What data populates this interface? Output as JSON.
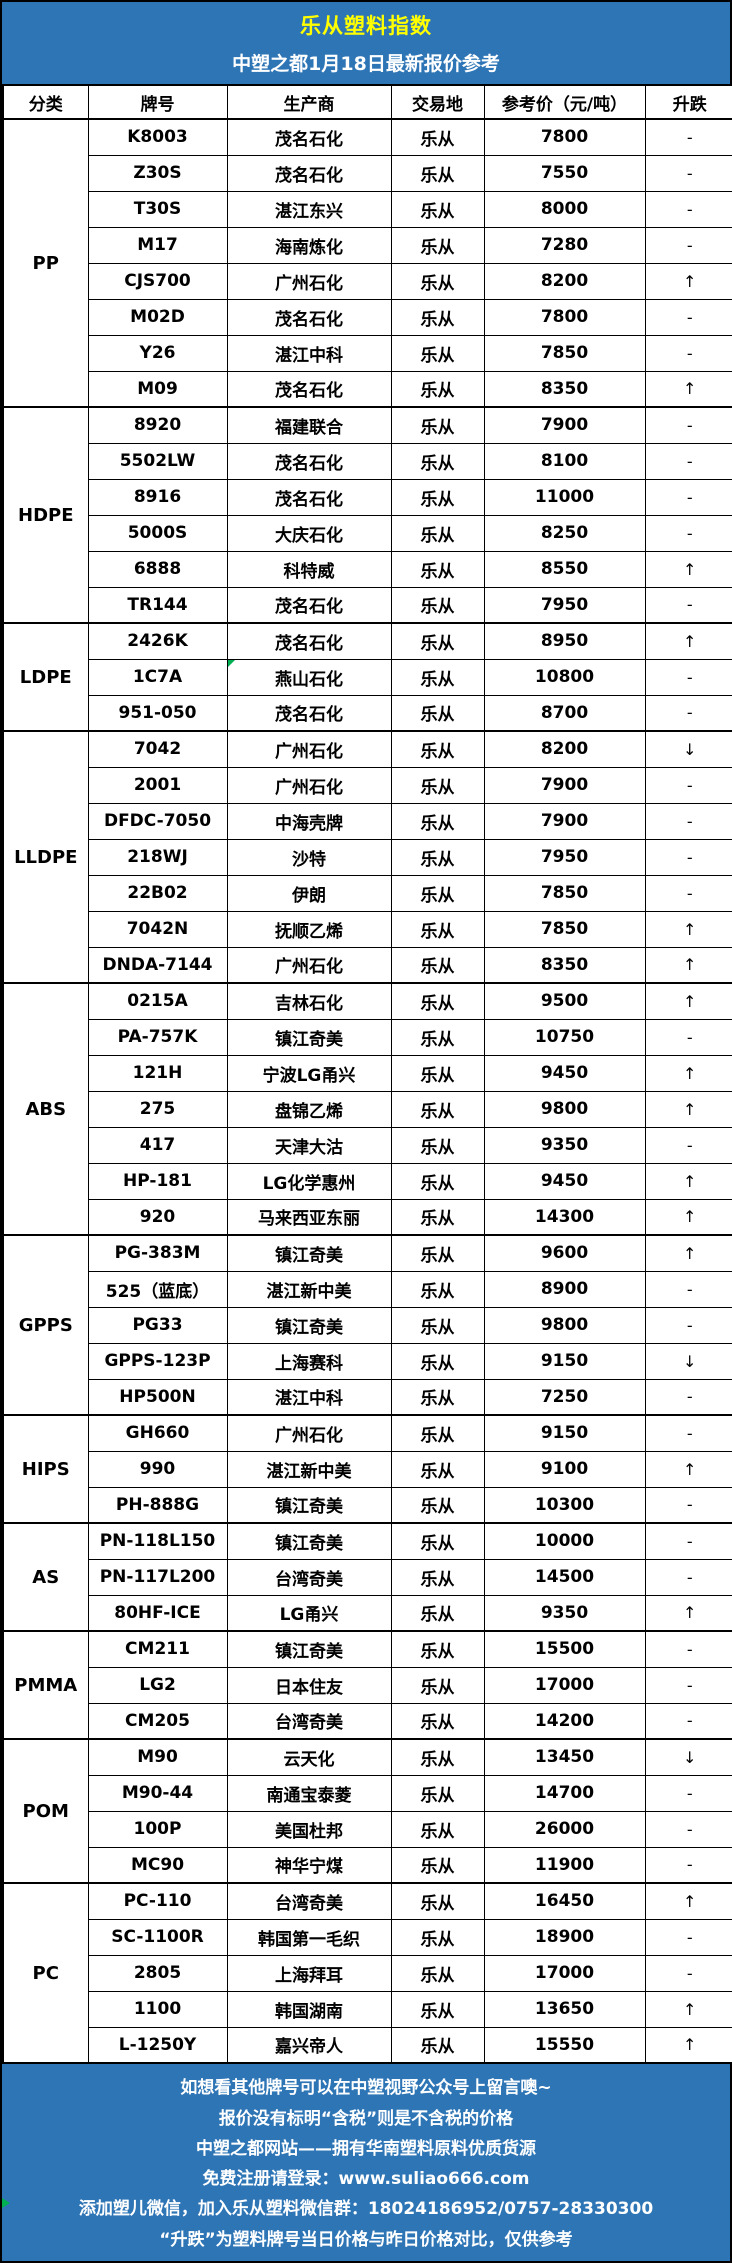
{
  "banner": {
    "title": "乐从塑料指数",
    "subtitle": "中塑之都1月18日最新报价参考"
  },
  "table": {
    "columns": [
      "分类",
      "牌号",
      "生产商",
      "交易地",
      "参考价（元/吨）",
      "升跌"
    ],
    "sections": [
      {
        "category": "PP",
        "rows": [
          {
            "grade": "K8003",
            "producer": "茂名石化",
            "market": "乐从",
            "price": "7800",
            "change": "-"
          },
          {
            "grade": "Z30S",
            "producer": "茂名石化",
            "market": "乐从",
            "price": "7550",
            "change": "-"
          },
          {
            "grade": "T30S",
            "producer": "湛江东兴",
            "market": "乐从",
            "price": "8000",
            "change": "-"
          },
          {
            "grade": "M17",
            "producer": "海南炼化",
            "market": "乐从",
            "price": "7280",
            "change": "-"
          },
          {
            "grade": "CJS700",
            "producer": "广州石化",
            "market": "乐从",
            "price": "8200",
            "change": "↑"
          },
          {
            "grade": "M02D",
            "producer": "茂名石化",
            "market": "乐从",
            "price": "7800",
            "change": "-"
          },
          {
            "grade": "Y26",
            "producer": "湛江中科",
            "market": "乐从",
            "price": "7850",
            "change": "-"
          },
          {
            "grade": "M09",
            "producer": "茂名石化",
            "market": "乐从",
            "price": "8350",
            "change": "↑"
          }
        ]
      },
      {
        "category": "HDPE",
        "rows": [
          {
            "grade": "8920",
            "producer": "福建联合",
            "market": "乐从",
            "price": "7900",
            "change": "-"
          },
          {
            "grade": "5502LW",
            "producer": "茂名石化",
            "market": "乐从",
            "price": "8100",
            "change": "-"
          },
          {
            "grade": "8916",
            "producer": "茂名石化",
            "market": "乐从",
            "price": "11000",
            "change": "-"
          },
          {
            "grade": "5000S",
            "producer": "大庆石化",
            "market": "乐从",
            "price": "8250",
            "change": "-"
          },
          {
            "grade": "6888",
            "producer": "科特威",
            "market": "乐从",
            "price": "8550",
            "change": "↑"
          },
          {
            "grade": "TR144",
            "producer": "茂名石化",
            "market": "乐从",
            "price": "7950",
            "change": "-"
          }
        ]
      },
      {
        "category": "LDPE",
        "rows": [
          {
            "grade": "2426K",
            "producer": "茂名石化",
            "market": "乐从",
            "price": "8950",
            "change": "↑"
          },
          {
            "grade": "1C7A",
            "producer": "燕山石化",
            "market": "乐从",
            "price": "10800",
            "change": "-",
            "note": true
          },
          {
            "grade": "951-050",
            "producer": "茂名石化",
            "market": "乐从",
            "price": "8700",
            "change": "-"
          }
        ]
      },
      {
        "category": "LLDPE",
        "rows": [
          {
            "grade": "7042",
            "producer": "广州石化",
            "market": "乐从",
            "price": "8200",
            "change": "↓"
          },
          {
            "grade": "2001",
            "producer": "广州石化",
            "market": "乐从",
            "price": "7900",
            "change": "-"
          },
          {
            "grade": "DFDC-7050",
            "producer": "中海壳牌",
            "market": "乐从",
            "price": "7900",
            "change": "-"
          },
          {
            "grade": "218WJ",
            "producer": "沙特",
            "market": "乐从",
            "price": "7950",
            "change": "-"
          },
          {
            "grade": "22B02",
            "producer": "伊朗",
            "market": "乐从",
            "price": "7850",
            "change": "-"
          },
          {
            "grade": "7042N",
            "producer": "抚顺乙烯",
            "market": "乐从",
            "price": "7850",
            "change": "↑"
          },
          {
            "grade": "DNDA-7144",
            "producer": "广州石化",
            "market": "乐从",
            "price": "8350",
            "change": "↑"
          }
        ]
      },
      {
        "category": "ABS",
        "rows": [
          {
            "grade": "0215A",
            "producer": "吉林石化",
            "market": "乐从",
            "price": "9500",
            "change": "↑"
          },
          {
            "grade": "PA-757K",
            "producer": "镇江奇美",
            "market": "乐从",
            "price": "10750",
            "change": "-"
          },
          {
            "grade": "121H",
            "producer": "宁波LG甬兴",
            "market": "乐从",
            "price": "9450",
            "change": "↑"
          },
          {
            "grade": "275",
            "producer": "盘锦乙烯",
            "market": "乐从",
            "price": "9800",
            "change": "↑"
          },
          {
            "grade": "417",
            "producer": "天津大沽",
            "market": "乐从",
            "price": "9350",
            "change": "-"
          },
          {
            "grade": "HP-181",
            "producer": "LG化学惠州",
            "market": "乐从",
            "price": "9450",
            "change": "↑"
          },
          {
            "grade": "920",
            "producer": "马来西亚东丽",
            "market": "乐从",
            "price": "14300",
            "change": "↑"
          }
        ]
      },
      {
        "category": "GPPS",
        "rows": [
          {
            "grade": "PG-383M",
            "producer": "镇江奇美",
            "market": "乐从",
            "price": "9600",
            "change": "↑"
          },
          {
            "grade": "525（蓝底）",
            "producer": "湛江新中美",
            "market": "乐从",
            "price": "8900",
            "change": "-"
          },
          {
            "grade": "PG33",
            "producer": "镇江奇美",
            "market": "乐从",
            "price": "9800",
            "change": "-"
          },
          {
            "grade": "GPPS-123P",
            "producer": "上海赛科",
            "market": "乐从",
            "price": "9150",
            "change": "↓"
          },
          {
            "grade": "HP500N",
            "producer": "湛江中科",
            "market": "乐从",
            "price": "7250",
            "change": "-"
          }
        ]
      },
      {
        "category": "HIPS",
        "rows": [
          {
            "grade": "GH660",
            "producer": "广州石化",
            "market": "乐从",
            "price": "9150",
            "change": "-"
          },
          {
            "grade": "990",
            "producer": "湛江新中美",
            "market": "乐从",
            "price": "9100",
            "change": "↑"
          },
          {
            "grade": "PH-888G",
            "producer": "镇江奇美",
            "market": "乐从",
            "price": "10300",
            "change": "-"
          }
        ]
      },
      {
        "category": "AS",
        "rows": [
          {
            "grade": "PN-118L150",
            "producer": "镇江奇美",
            "market": "乐从",
            "price": "10000",
            "change": "-"
          },
          {
            "grade": "PN-117L200",
            "producer": "台湾奇美",
            "market": "乐从",
            "price": "14500",
            "change": "-"
          },
          {
            "grade": "80HF-ICE",
            "producer": "LG甬兴",
            "market": "乐从",
            "price": "9350",
            "change": "↑"
          }
        ]
      },
      {
        "category": "PMMA",
        "rows": [
          {
            "grade": "CM211",
            "producer": "镇江奇美",
            "market": "乐从",
            "price": "15500",
            "change": "-"
          },
          {
            "grade": "LG2",
            "producer": "日本住友",
            "market": "乐从",
            "price": "17000",
            "change": "-"
          },
          {
            "grade": "CM205",
            "producer": "台湾奇美",
            "market": "乐从",
            "price": "14200",
            "change": "-"
          }
        ]
      },
      {
        "category": "POM",
        "rows": [
          {
            "grade": "M90",
            "producer": "云天化",
            "market": "乐从",
            "price": "13450",
            "change": "↓"
          },
          {
            "grade": "M90-44",
            "producer": "南通宝泰菱",
            "market": "乐从",
            "price": "14700",
            "change": "-"
          },
          {
            "grade": "100P",
            "producer": "美国杜邦",
            "market": "乐从",
            "price": "26000",
            "change": "-"
          },
          {
            "grade": "MC90",
            "producer": "神华宁煤",
            "market": "乐从",
            "price": "11900",
            "change": "-"
          }
        ]
      },
      {
        "category": "PC",
        "rows": [
          {
            "grade": "PC-110",
            "producer": "台湾奇美",
            "market": "乐从",
            "price": "16450",
            "change": "↑"
          },
          {
            "grade": "SC-1100R",
            "producer": "韩国第一毛织",
            "market": "乐从",
            "price": "18900",
            "change": "-"
          },
          {
            "grade": "2805",
            "producer": "上海拜耳",
            "market": "乐从",
            "price": "17000",
            "change": "-"
          },
          {
            "grade": "1100",
            "producer": "韩国湖南",
            "market": "乐从",
            "price": "13650",
            "change": "↑"
          },
          {
            "grade": "L-1250Y",
            "producer": "嘉兴帝人",
            "market": "乐从",
            "price": "15550",
            "change": "↑"
          }
        ]
      }
    ]
  },
  "footer": {
    "lines": [
      "如想看其他牌号可以在中塑视野公众号上留言噢~",
      "报价没有标明“含税”则是不含税的价格",
      "中塑之都网站——拥有华南塑料原料优质货源",
      "免费注册请登录：www.suliao666.com",
      "添加塑儿微信，加入乐从塑料微信群：18024186952/0757-28330300",
      "“升跌”为塑料牌号当日价格与昨日价格对比，仅供参考"
    ]
  },
  "colors": {
    "banner_blue": "#2E75B6",
    "title_yellow": "#FFFF00",
    "note_green": "#00B050",
    "text_black": "#000000",
    "text_white": "#FFFFFF"
  },
  "icons": {
    "up_arrow": "↑",
    "down_arrow": "↓",
    "no_change": "-"
  }
}
